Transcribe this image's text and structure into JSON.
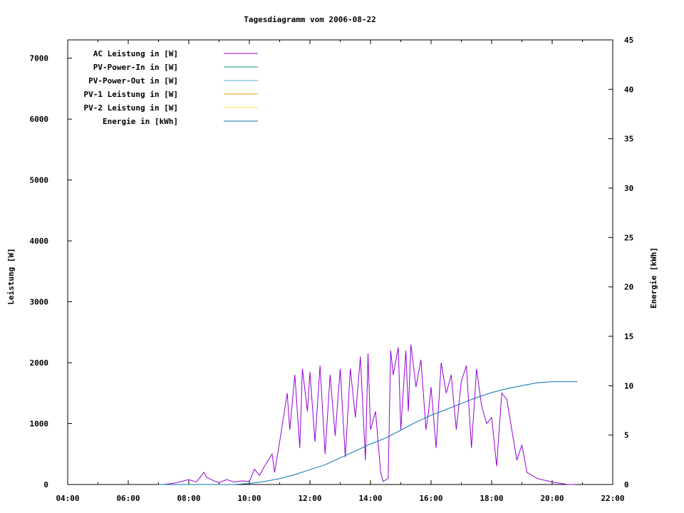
{
  "chart_data": {
    "type": "line",
    "title": "Tagesdiagramm vom 2006-08-22",
    "ylabel": "Leistung [W]",
    "y2label": "Energie [kWh]",
    "xlim": [
      "04:00",
      "22:00"
    ],
    "ylim": [
      0,
      7300
    ],
    "y2lim": [
      0,
      45
    ],
    "x_ticks": [
      "04:00",
      "06:00",
      "08:00",
      "10:00",
      "12:00",
      "14:00",
      "16:00",
      "18:00",
      "20:00",
      "22:00"
    ],
    "y_ticks": [
      0,
      1000,
      2000,
      3000,
      4000,
      5000,
      6000,
      7000
    ],
    "y2_ticks": [
      0,
      5,
      10,
      15,
      20,
      25,
      30,
      35,
      40,
      45
    ],
    "legend_position": "top-left",
    "grid": false,
    "legend": [
      {
        "label": "AC Leistung in [W]",
        "color": "#9400d3"
      },
      {
        "label": "PV-Power-In in [W]",
        "color": "#009e73"
      },
      {
        "label": "PV-Power-Out in [W]",
        "color": "#56b4e9"
      },
      {
        "label": "PV-1 Leistung in [W]",
        "color": "#e69f00"
      },
      {
        "label": "PV-2 Leistung in [W]",
        "color": "#f0e442"
      },
      {
        "label": "Energie in [kWh]",
        "color": "#0072b2"
      }
    ],
    "series": [
      {
        "name": "AC Leistung in [W]",
        "axis": "left",
        "color": "#9400d3",
        "x": [
          "07:10",
          "07:30",
          "07:50",
          "08:00",
          "08:15",
          "08:30",
          "08:35",
          "08:50",
          "09:00",
          "09:15",
          "09:30",
          "09:45",
          "10:00",
          "10:10",
          "10:20",
          "10:30",
          "10:45",
          "10:50",
          "11:00",
          "11:15",
          "11:20",
          "11:30",
          "11:40",
          "11:45",
          "11:55",
          "12:00",
          "12:10",
          "12:20",
          "12:30",
          "12:40",
          "12:50",
          "13:00",
          "13:10",
          "13:20",
          "13:30",
          "13:40",
          "13:50",
          "13:55",
          "14:00",
          "14:10",
          "14:20",
          "14:25",
          "14:35",
          "14:40",
          "14:45",
          "14:55",
          "15:00",
          "15:10",
          "15:15",
          "15:20",
          "15:30",
          "15:40",
          "15:50",
          "15:55",
          "16:00",
          "16:10",
          "16:20",
          "16:30",
          "16:40",
          "16:50",
          "17:00",
          "17:10",
          "17:20",
          "17:30",
          "17:40",
          "17:50",
          "18:00",
          "18:10",
          "18:20",
          "18:30",
          "18:40",
          "18:50",
          "19:00",
          "19:10",
          "19:20",
          "19:30",
          "19:40",
          "19:50",
          "20:00",
          "20:15",
          "20:30",
          "20:45"
        ],
        "y": [
          0,
          20,
          60,
          80,
          40,
          200,
          120,
          60,
          30,
          80,
          40,
          60,
          50,
          250,
          150,
          300,
          500,
          200,
          700,
          1500,
          900,
          1800,
          600,
          1900,
          1200,
          1850,
          700,
          1950,
          500,
          1800,
          800,
          1900,
          450,
          1900,
          1100,
          2100,
          400,
          2150,
          900,
          1200,
          200,
          50,
          100,
          2200,
          1800,
          2250,
          900,
          2200,
          1200,
          2300,
          1600,
          2050,
          900,
          1200,
          1600,
          600,
          2000,
          1500,
          1800,
          900,
          1700,
          1950,
          600,
          1900,
          1300,
          1000,
          1100,
          300,
          1500,
          1400,
          900,
          400,
          650,
          200,
          150,
          100,
          80,
          60,
          40,
          20,
          0,
          0
        ]
      },
      {
        "name": "Energie in [kWh]",
        "axis": "right",
        "color": "#0072b2",
        "x": [
          "07:00",
          "09:30",
          "10:00",
          "10:30",
          "11:00",
          "11:30",
          "12:00",
          "12:30",
          "13:00",
          "13:30",
          "14:00",
          "14:30",
          "15:00",
          "15:30",
          "16:00",
          "16:30",
          "17:00",
          "17:30",
          "18:00",
          "18:30",
          "19:00",
          "19:30",
          "20:00",
          "20:50"
        ],
        "y": [
          0,
          0,
          0.1,
          0.3,
          0.6,
          1.0,
          1.5,
          2.0,
          2.7,
          3.4,
          4.1,
          4.7,
          5.5,
          6.3,
          7.0,
          7.6,
          8.2,
          8.8,
          9.3,
          9.7,
          10.0,
          10.3,
          10.4,
          10.4
        ]
      }
    ]
  }
}
